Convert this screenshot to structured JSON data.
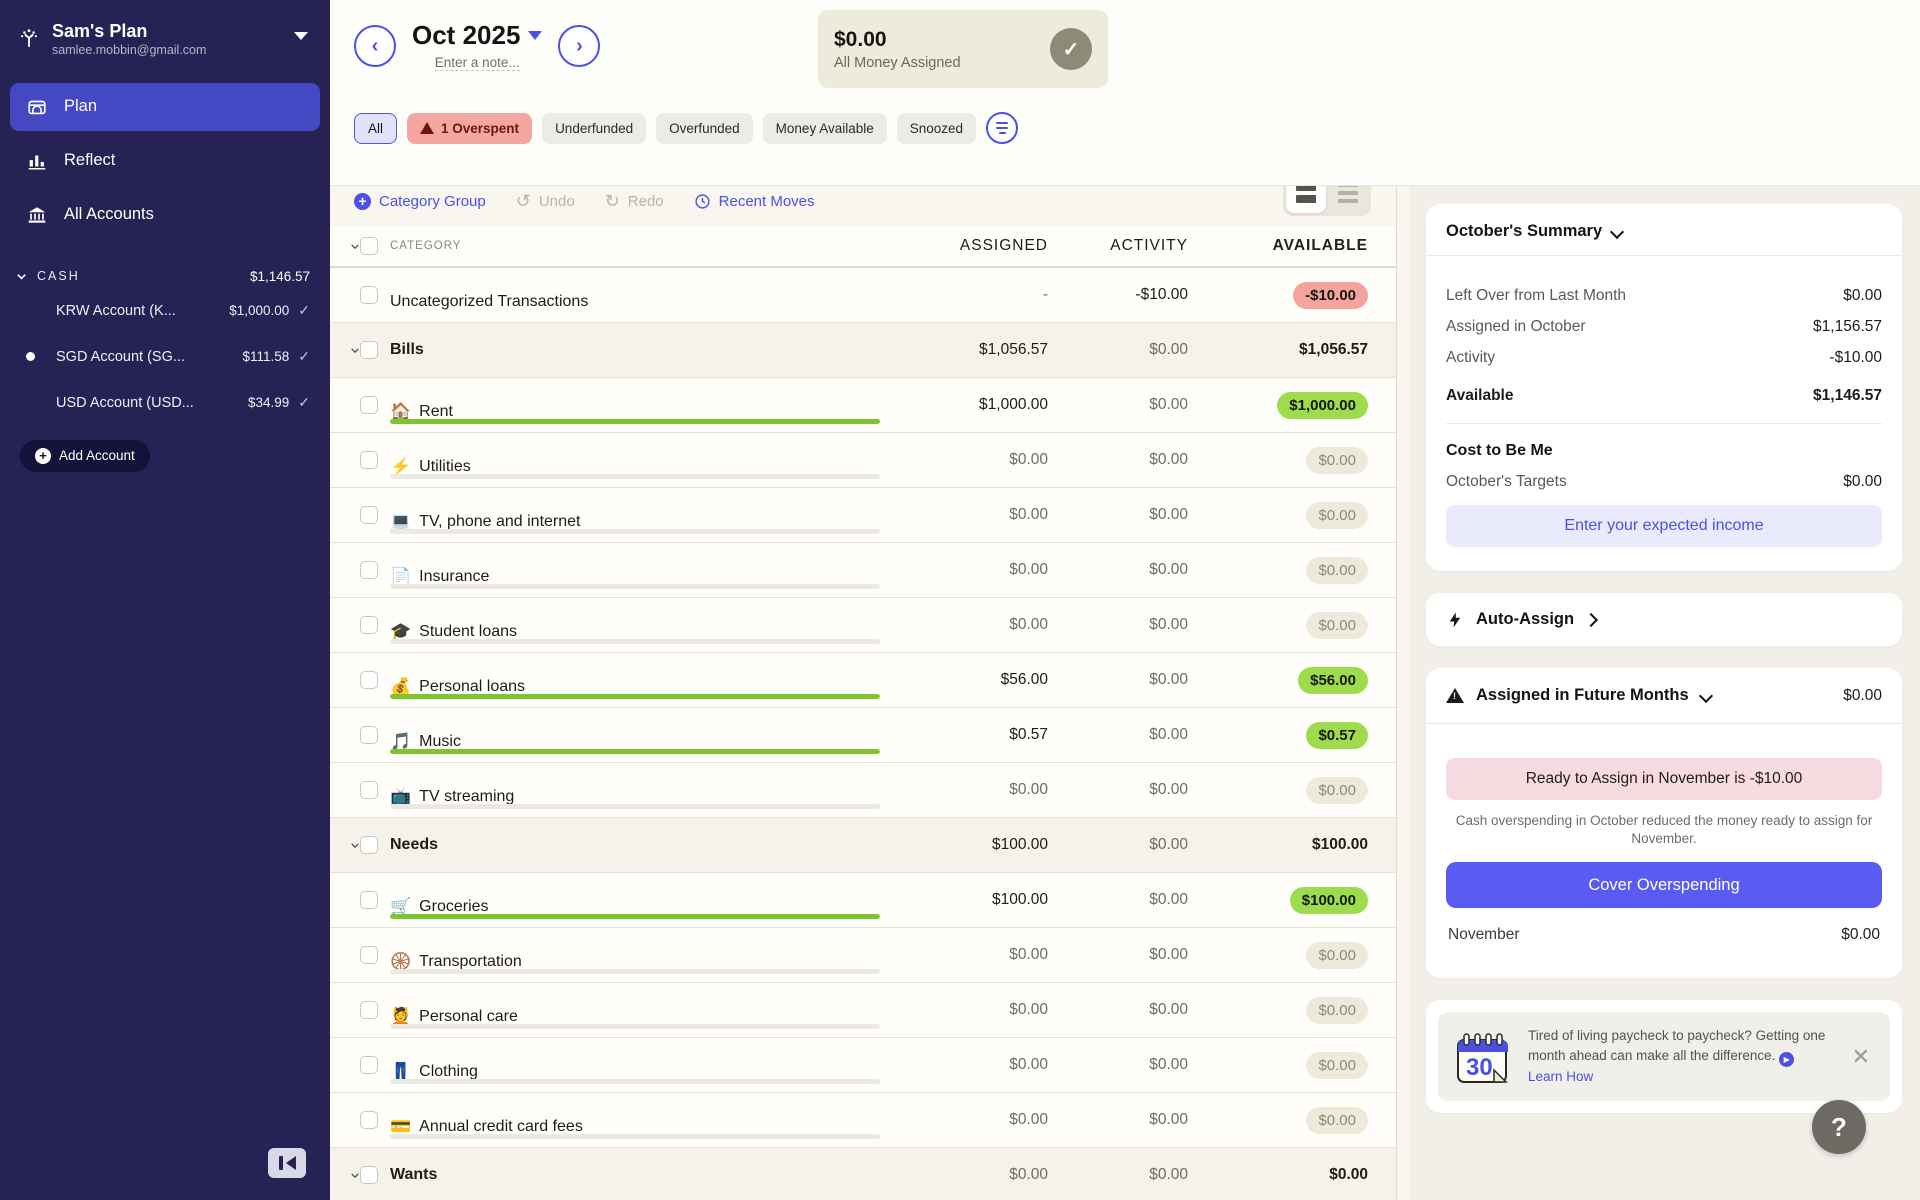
{
  "colors": {
    "sidebar_bg": "#262253",
    "accent": "#4c50e4",
    "cover_button": "#5a5bf2",
    "positive_pill": "#9edc4e",
    "negative_pill": "#f4a49c",
    "neutral_pill": "#edeadc"
  },
  "sidebar": {
    "plan_name": "Sam's Plan",
    "email": "samlee.mobbin@gmail.com",
    "nav": [
      {
        "label": "Plan"
      },
      {
        "label": "Reflect"
      },
      {
        "label": "All Accounts"
      }
    ],
    "cash_group": {
      "label": "CASH",
      "total": "$1,146.57"
    },
    "accounts": [
      {
        "name": "KRW Account (K...",
        "balance": "$1,000.00",
        "check": "✓"
      },
      {
        "name": "SGD Account (SG...",
        "balance": "$111.58",
        "check": "✓"
      },
      {
        "name": "USD Account (USD...",
        "balance": "$34.99",
        "check": "✓"
      }
    ],
    "add_account_label": "Add Account"
  },
  "header": {
    "month": "Oct 2025",
    "note_placeholder": "Enter a note...",
    "prev_glyph": "‹",
    "next_glyph": "›",
    "assigned_box": {
      "amount": "$0.00",
      "label": "All Money Assigned",
      "check": "✓"
    }
  },
  "filters": {
    "pills": [
      {
        "label": "All"
      },
      {
        "label": "1 Overspent"
      },
      {
        "label": "Underfunded"
      },
      {
        "label": "Overfunded"
      },
      {
        "label": "Money Available"
      },
      {
        "label": "Snoozed"
      }
    ]
  },
  "toolbar": {
    "category_group": "Category Group",
    "undo": "Undo",
    "redo": "Redo",
    "recent_moves": "Recent Moves"
  },
  "table": {
    "headers": {
      "category": "CATEGORY",
      "assigned": "ASSIGNED",
      "activity": "ACTIVITY",
      "available": "AVAILABLE"
    },
    "rows": [
      {
        "type": "category",
        "name": "Uncategorized Transactions",
        "emoji": "",
        "assigned": "-",
        "activity": "-$10.00",
        "available": "-$10.00",
        "pill": "red",
        "bar": null
      },
      {
        "type": "group",
        "name": "Bills",
        "emoji": "",
        "assigned": "$1,056.57",
        "activity": "$0.00",
        "available": "$1,056.57",
        "pill": null,
        "bar": null
      },
      {
        "type": "category",
        "name": "Rent",
        "emoji": "🏠",
        "assigned": "$1,000.00",
        "activity": "$0.00",
        "available": "$1,000.00",
        "pill": "green",
        "bar": "full"
      },
      {
        "type": "category",
        "name": "Utilities",
        "emoji": "⚡",
        "assigned": "$0.00",
        "activity": "$0.00",
        "available": "$0.00",
        "pill": "beige",
        "bar": "empty"
      },
      {
        "type": "category",
        "name": "TV, phone and internet",
        "emoji": "💻",
        "assigned": "$0.00",
        "activity": "$0.00",
        "available": "$0.00",
        "pill": "beige",
        "bar": "empty"
      },
      {
        "type": "category",
        "name": "Insurance",
        "emoji": "📄",
        "assigned": "$0.00",
        "activity": "$0.00",
        "available": "$0.00",
        "pill": "beige",
        "bar": "empty"
      },
      {
        "type": "category",
        "name": "Student loans",
        "emoji": "🎓",
        "assigned": "$0.00",
        "activity": "$0.00",
        "available": "$0.00",
        "pill": "beige",
        "bar": "empty"
      },
      {
        "type": "category",
        "name": "Personal loans",
        "emoji": "💰",
        "assigned": "$56.00",
        "activity": "$0.00",
        "available": "$56.00",
        "pill": "green",
        "bar": "full"
      },
      {
        "type": "category",
        "name": "Music",
        "emoji": "🎵",
        "assigned": "$0.57",
        "activity": "$0.00",
        "available": "$0.57",
        "pill": "green",
        "bar": "full"
      },
      {
        "type": "category",
        "name": "TV streaming",
        "emoji": "📺",
        "assigned": "$0.00",
        "activity": "$0.00",
        "available": "$0.00",
        "pill": "beige",
        "bar": "empty"
      },
      {
        "type": "group",
        "name": "Needs",
        "emoji": "",
        "assigned": "$100.00",
        "activity": "$0.00",
        "available": "$100.00",
        "pill": null,
        "bar": null
      },
      {
        "type": "category",
        "name": "Groceries",
        "emoji": "🛒",
        "assigned": "$100.00",
        "activity": "$0.00",
        "available": "$100.00",
        "pill": "green",
        "bar": "full"
      },
      {
        "type": "category",
        "name": "Transportation",
        "emoji": "🛞",
        "assigned": "$0.00",
        "activity": "$0.00",
        "available": "$0.00",
        "pill": "beige",
        "bar": "empty"
      },
      {
        "type": "category",
        "name": "Personal care",
        "emoji": "💆",
        "assigned": "$0.00",
        "activity": "$0.00",
        "available": "$0.00",
        "pill": "beige",
        "bar": "empty"
      },
      {
        "type": "category",
        "name": "Clothing",
        "emoji": "👖",
        "assigned": "$0.00",
        "activity": "$0.00",
        "available": "$0.00",
        "pill": "beige",
        "bar": "empty"
      },
      {
        "type": "category",
        "name": "Annual credit card fees",
        "emoji": "💳",
        "assigned": "$0.00",
        "activity": "$0.00",
        "available": "$0.00",
        "pill": "beige",
        "bar": "empty"
      },
      {
        "type": "group",
        "name": "Wants",
        "emoji": "",
        "assigned": "$0.00",
        "activity": "$0.00",
        "available": "$0.00",
        "pill": null,
        "bar": null
      }
    ]
  },
  "summary": {
    "title": "October's Summary",
    "rows": [
      {
        "label": "Left Over from Last Month",
        "value": "$0.00"
      },
      {
        "label": "Assigned in October",
        "value": "$1,156.57"
      },
      {
        "label": "Activity",
        "value": "-$10.00"
      }
    ],
    "available": {
      "label": "Available",
      "value": "$1,146.57"
    },
    "cost_to_be_me": "Cost to Be Me",
    "targets": {
      "label": "October's Targets",
      "value": "$0.00"
    },
    "income_button": "Enter your expected income"
  },
  "auto_assign": {
    "label": "Auto-Assign"
  },
  "future": {
    "title": "Assigned in Future Months",
    "amount": "$0.00",
    "banner": "Ready to Assign in November is -$10.00",
    "note": "Cash overspending in October reduced the money ready to assign for November.",
    "cover_button": "Cover Overspending",
    "november": {
      "label": "November",
      "value": "$0.00"
    }
  },
  "promo": {
    "calendar_number": "30",
    "text": "Tired of living paycheck to paycheck? Getting one month ahead can make all the difference.",
    "link": "Learn How"
  },
  "help": {
    "label": "?"
  }
}
